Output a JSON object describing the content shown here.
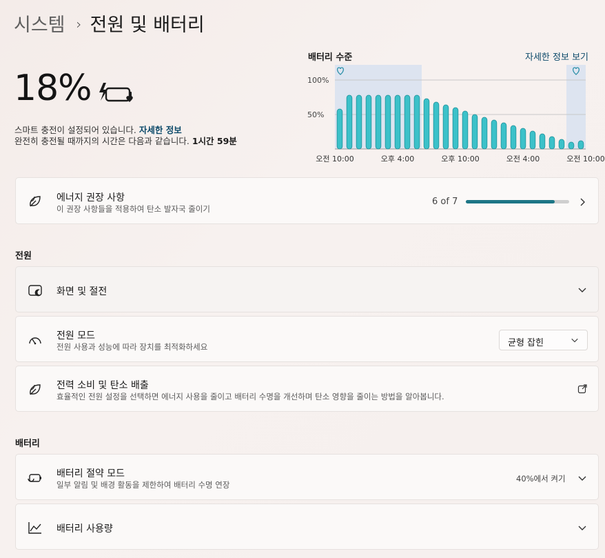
{
  "breadcrumb": {
    "parent": "시스템",
    "current": "전원 및 배터리"
  },
  "battery": {
    "percent": "18%",
    "smart_charge_text": "스마트 충전이 설정되어 있습니다.",
    "smart_charge_link": "자세한 정보",
    "time_prefix": "완전히 충전될 때까지의 시간은 다음과 같습니다. ",
    "time_value": "1시간 59분"
  },
  "chart": {
    "title": "배터리 수준",
    "link": "자세한 정보 보기",
    "y_ticks": [
      "100%",
      "50%"
    ],
    "x_ticks": [
      "오전 10:00",
      "오후 4:00",
      "오후 10:00",
      "오전 4:00",
      "오전 10:00"
    ]
  },
  "chart_data": {
    "type": "bar",
    "ylim": [
      0,
      100
    ],
    "yticks": [
      "100%",
      "50%"
    ],
    "xticks": [
      "오전 10:00",
      "오후 4:00",
      "오후 10:00",
      "오전 4:00",
      "오전 10:00"
    ],
    "values": [
      58,
      78,
      78,
      78,
      78,
      78,
      78,
      78,
      78,
      73,
      68,
      64,
      60,
      55,
      50,
      46,
      42,
      38,
      34,
      30,
      26,
      22,
      18,
      14,
      10,
      12
    ],
    "highlight_ranges": [
      [
        0,
        8
      ],
      [
        24,
        25
      ]
    ]
  },
  "recommend": {
    "title": "에너지 권장 사항",
    "subtitle": "이 권장 사항들을 적용하여 탄소 발자국 줄이기",
    "progress_text": "6 of 7",
    "progress_value": 0.857
  },
  "section_power": "전원",
  "screen_sleep": {
    "title": "화면 및 절전"
  },
  "power_mode": {
    "title": "전원 모드",
    "subtitle": "전원 사용과 성능에 따라 장치를 최적화하세요",
    "selected": "균형 잡힌"
  },
  "power_carbon": {
    "title": "전력 소비 및 탄소 배출",
    "subtitle": "효율적인 전원 설정을 선택하면 에너지 사용을 줄이고 배터리 수명을 개선하며 탄소 영향을 줄이는 방법을 알아봅니다."
  },
  "section_battery": "배터리",
  "battery_saver": {
    "title": "배터리 절약 모드",
    "subtitle": "일부 알림 및 배경 활동을 제한하여 배터리 수명 연장",
    "status": "40%에서 켜기"
  },
  "battery_usage": {
    "title": "배터리 사용량"
  },
  "colors": {
    "accent": "#1d7686",
    "bar": "#3cc1c9",
    "highlight": "#dde4f0"
  }
}
